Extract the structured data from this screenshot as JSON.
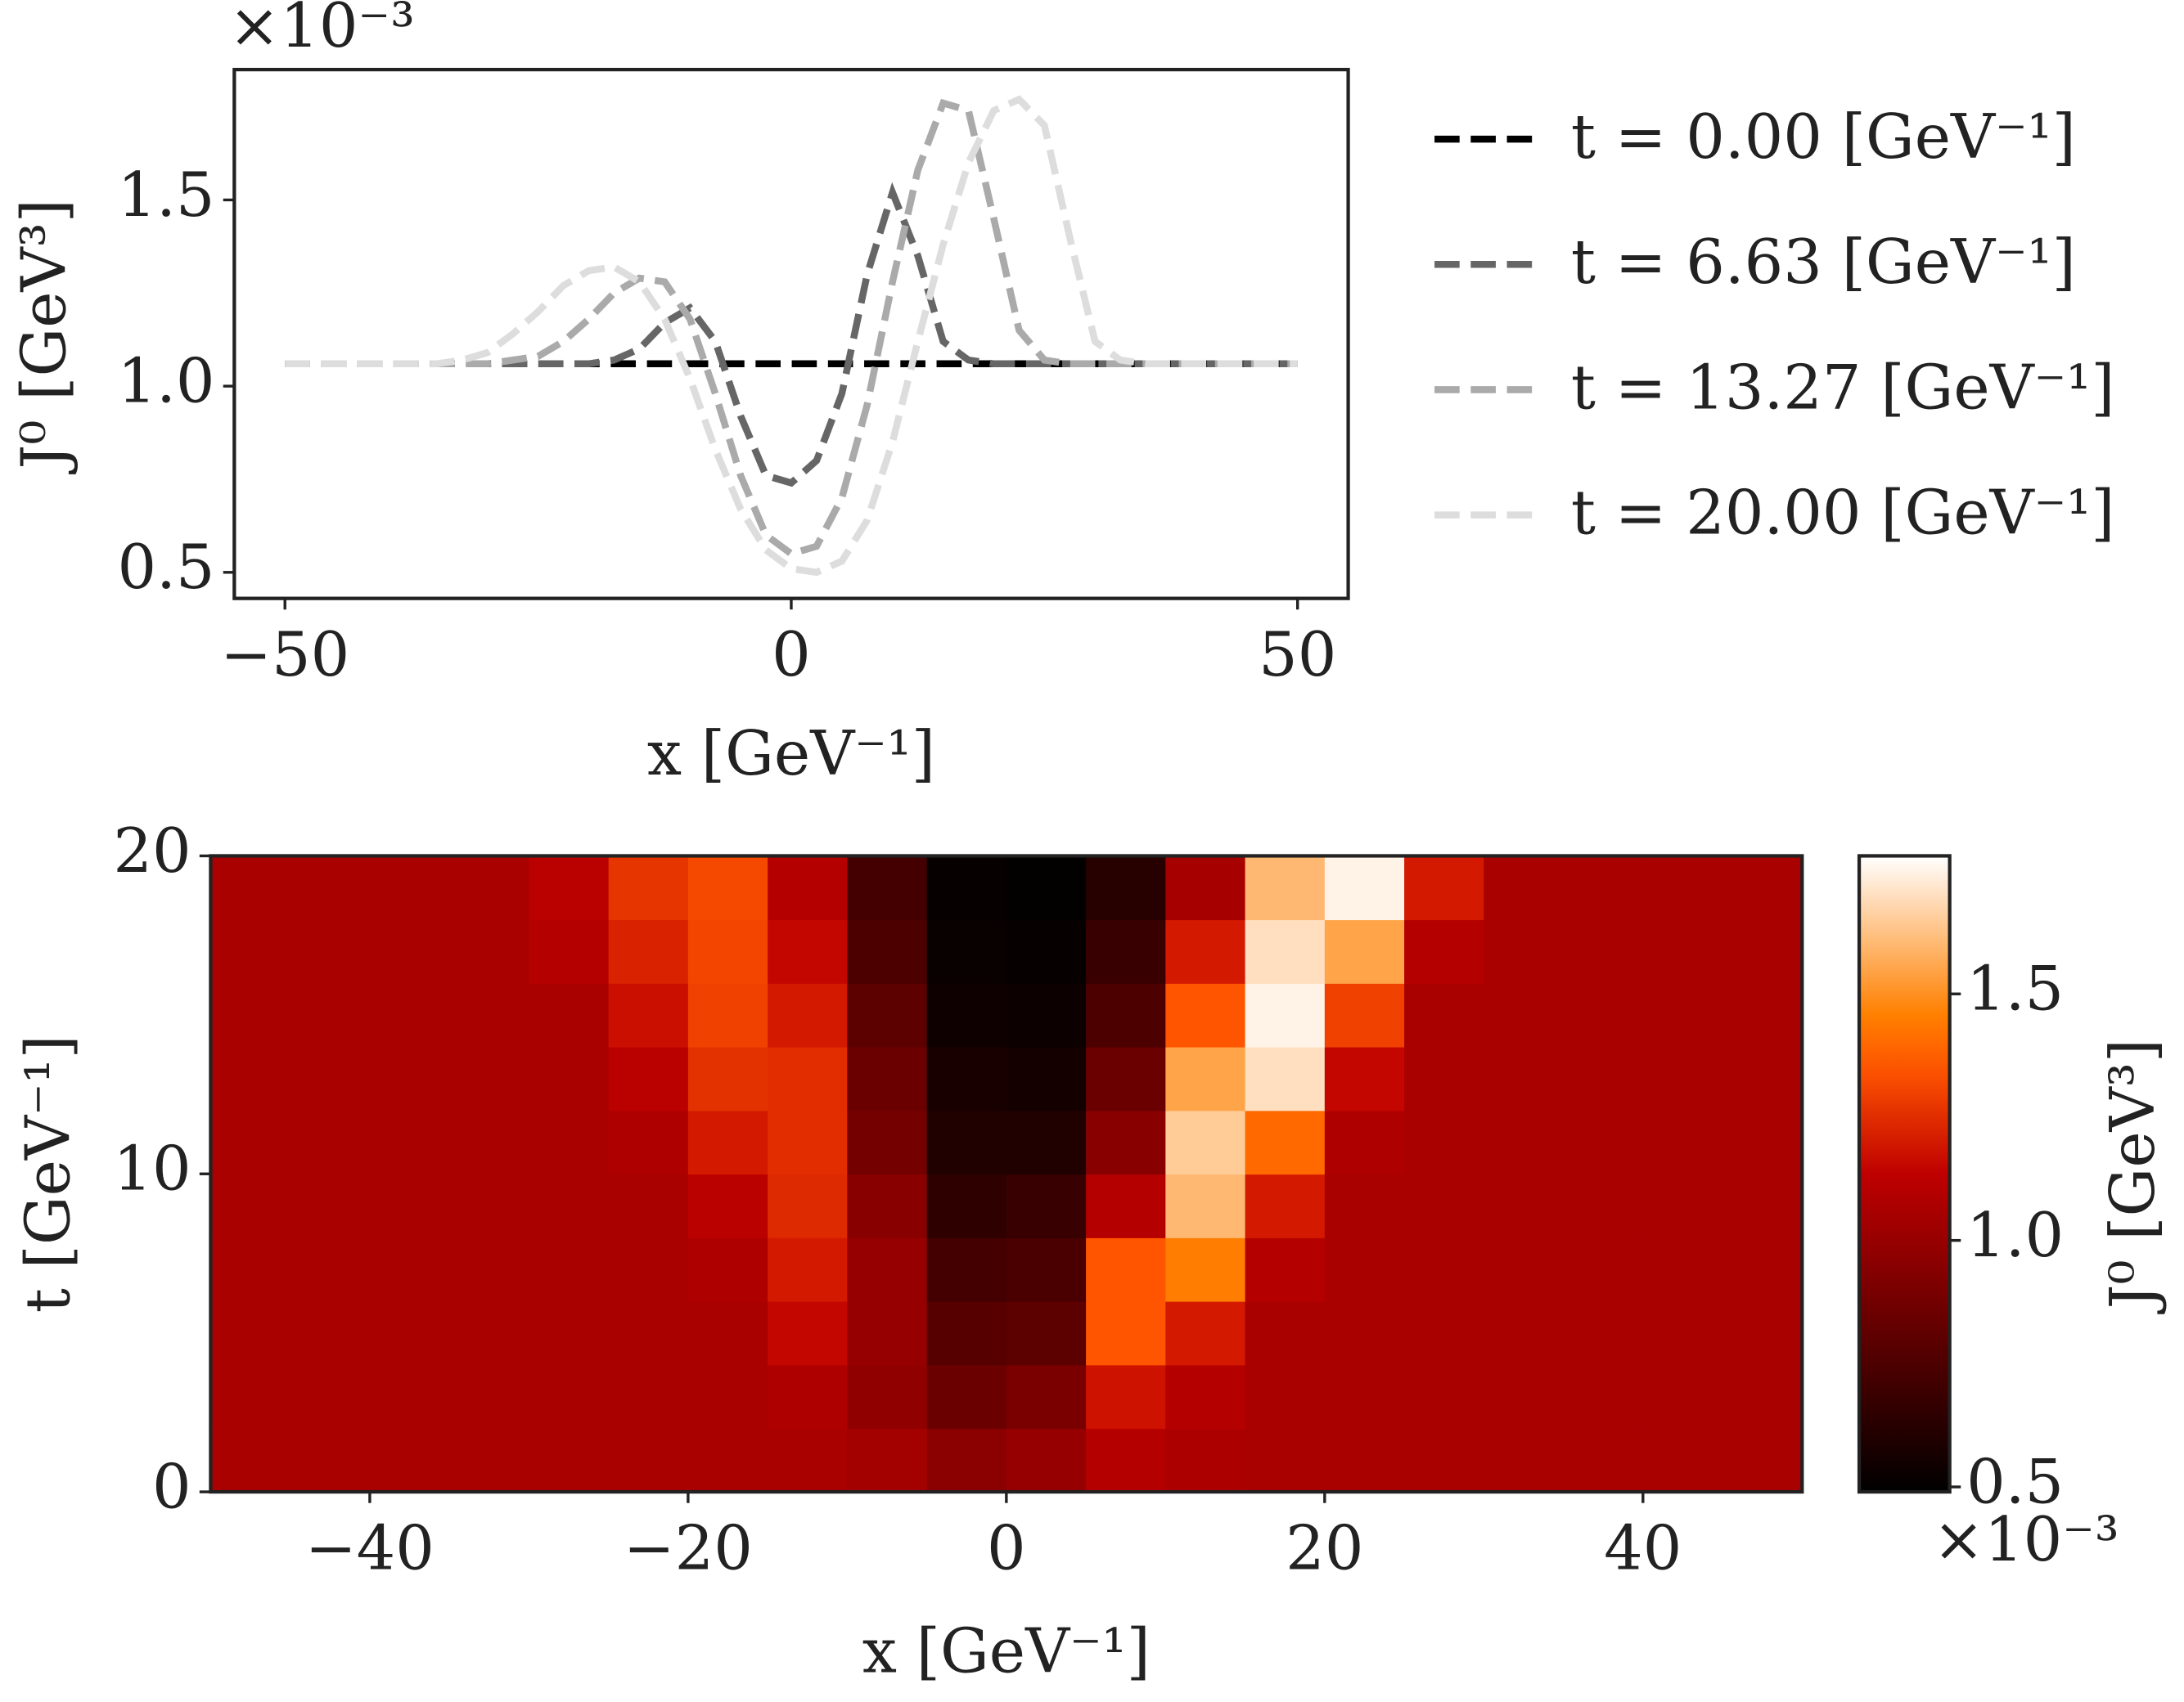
{
  "chart_data": [
    {
      "type": "line",
      "offset_text": "×10⁻³",
      "xlabel": "x [GeV⁻¹]",
      "ylabel": "J⁰ [GeV³]",
      "xlim": [
        -55,
        55
      ],
      "ylim": [
        0.43,
        1.85
      ],
      "xticks": [
        {
          "value": -50,
          "label": "−50"
        },
        0,
        50
      ],
      "yticks": [
        {
          "value": 0.5,
          "label": "0.5"
        },
        {
          "value": 1,
          "label": "1.0"
        },
        {
          "value": 1.5,
          "label": "1.5"
        }
      ],
      "legend": "right",
      "x": [
        -50,
        -47.5,
        -45,
        -42.5,
        -40,
        -37.5,
        -35,
        -32.5,
        -30,
        -27.5,
        -25,
        -22.5,
        -20,
        -17.5,
        -15,
        -12.5,
        -10,
        -7.5,
        -5,
        -2.5,
        0,
        2.5,
        5,
        7.5,
        10,
        12.5,
        15,
        17.5,
        20,
        22.5,
        25,
        27.5,
        30,
        32.5,
        35,
        37.5,
        40,
        42.5,
        45,
        47.5,
        50
      ],
      "series": [
        {
          "name": "t = 0.00 [GeV⁻¹]",
          "color": "#000000",
          "values": [
            1.06,
            1.06,
            1.06,
            1.06,
            1.06,
            1.06,
            1.06,
            1.06,
            1.06,
            1.06,
            1.06,
            1.06,
            1.06,
            1.06,
            1.06,
            1.06,
            1.06,
            1.06,
            1.06,
            1.06,
            1.06,
            1.06,
            1.06,
            1.06,
            1.06,
            1.06,
            1.06,
            1.06,
            1.06,
            1.06,
            1.06,
            1.06,
            1.06,
            1.06,
            1.06,
            1.06,
            1.06,
            1.06,
            1.06,
            1.06,
            1.06
          ]
        },
        {
          "name": "t = 6.63 [GeV⁻¹]",
          "color": "#666666",
          "values": [
            1.06,
            1.06,
            1.06,
            1.06,
            1.06,
            1.06,
            1.06,
            1.06,
            1.06,
            1.06,
            1.06,
            1.06,
            1.06,
            1.07,
            1.1,
            1.17,
            1.21,
            1.12,
            0.92,
            0.76,
            0.74,
            0.8,
            0.98,
            1.3,
            1.52,
            1.35,
            1.12,
            1.07,
            1.06,
            1.06,
            1.06,
            1.06,
            1.06,
            1.06,
            1.06,
            1.06,
            1.06,
            1.06,
            1.06,
            1.06,
            1.06
          ]
        },
        {
          "name": "t = 13.27 [GeV⁻¹]",
          "color": "#aaaaaa",
          "values": [
            1.06,
            1.06,
            1.06,
            1.06,
            1.06,
            1.06,
            1.06,
            1.06,
            1.06,
            1.07,
            1.08,
            1.12,
            1.18,
            1.25,
            1.29,
            1.28,
            1.18,
            0.98,
            0.76,
            0.6,
            0.55,
            0.57,
            0.7,
            0.95,
            1.28,
            1.58,
            1.76,
            1.74,
            1.45,
            1.15,
            1.07,
            1.06,
            1.06,
            1.06,
            1.06,
            1.06,
            1.06,
            1.06,
            1.06,
            1.06,
            1.06
          ]
        },
        {
          "name": "t = 20.00 [GeV⁻¹]",
          "color": "#dddddd",
          "values": [
            1.06,
            1.06,
            1.06,
            1.06,
            1.06,
            1.06,
            1.06,
            1.07,
            1.09,
            1.14,
            1.2,
            1.27,
            1.31,
            1.32,
            1.28,
            1.18,
            1.02,
            0.83,
            0.67,
            0.56,
            0.51,
            0.5,
            0.53,
            0.64,
            0.85,
            1.12,
            1.38,
            1.6,
            1.74,
            1.77,
            1.7,
            1.4,
            1.12,
            1.07,
            1.06,
            1.06,
            1.06,
            1.06,
            1.06,
            1.06,
            1.06
          ]
        }
      ]
    },
    {
      "type": "heatmap",
      "xlabel": "x [GeV⁻¹]",
      "ylabel": "t [GeV⁻¹]",
      "xlim": [
        -50,
        50
      ],
      "ylim": [
        0,
        20
      ],
      "xticks": [
        {
          "value": -40,
          "label": "−40"
        },
        {
          "value": -20,
          "label": "−20"
        },
        0,
        20,
        40
      ],
      "yticks": [
        0,
        10,
        20
      ],
      "colormap": "gist_heat",
      "clim": [
        0.49,
        1.78
      ],
      "cticks": [
        {
          "value": 0.5,
          "label": "0.5"
        },
        {
          "value": 1,
          "label": "1.0"
        },
        {
          "value": 1.5,
          "label": "1.5"
        }
      ],
      "colorbar_label": "J⁰ [GeV³]",
      "colorbar_offset_text": "×10⁻³",
      "x": [
        -47.5,
        -42.5,
        -37.5,
        -32.5,
        -27.5,
        -22.5,
        -17.5,
        -12.5,
        -7.5,
        -2.5,
        2.5,
        7.5,
        12.5,
        17.5,
        22.5,
        27.5,
        32.5,
        37.5,
        42.5,
        47.5
      ],
      "y": [
        1,
        3,
        5,
        7,
        9,
        11,
        13,
        15,
        17,
        19
      ],
      "values": [
        [
          1.06,
          1.06,
          1.06,
          1.06,
          1.06,
          1.06,
          1.06,
          1.06,
          1.04,
          0.96,
          1.0,
          1.1,
          1.07,
          1.06,
          1.06,
          1.06,
          1.06,
          1.06,
          1.06,
          1.06
        ],
        [
          1.06,
          1.06,
          1.06,
          1.06,
          1.06,
          1.06,
          1.06,
          1.08,
          0.98,
          0.85,
          0.9,
          1.18,
          1.1,
          1.06,
          1.06,
          1.06,
          1.06,
          1.06,
          1.06,
          1.06
        ],
        [
          1.06,
          1.06,
          1.06,
          1.06,
          1.06,
          1.06,
          1.06,
          1.15,
          1.0,
          0.78,
          0.8,
          1.35,
          1.2,
          1.06,
          1.06,
          1.06,
          1.06,
          1.06,
          1.06,
          1.06
        ],
        [
          1.06,
          1.06,
          1.06,
          1.06,
          1.06,
          1.06,
          1.08,
          1.2,
          1.0,
          0.72,
          0.74,
          1.35,
          1.45,
          1.1,
          1.06,
          1.06,
          1.06,
          1.06,
          1.06,
          1.06
        ],
        [
          1.06,
          1.06,
          1.06,
          1.06,
          1.06,
          1.06,
          1.12,
          1.24,
          0.95,
          0.65,
          0.68,
          1.1,
          1.6,
          1.2,
          1.06,
          1.06,
          1.06,
          1.06,
          1.06,
          1.06
        ],
        [
          1.06,
          1.06,
          1.06,
          1.06,
          1.06,
          1.08,
          1.2,
          1.25,
          0.88,
          0.6,
          0.6,
          0.95,
          1.65,
          1.4,
          1.08,
          1.06,
          1.06,
          1.06,
          1.06,
          1.06
        ],
        [
          1.06,
          1.06,
          1.06,
          1.06,
          1.06,
          1.12,
          1.26,
          1.25,
          0.85,
          0.57,
          0.56,
          0.85,
          1.55,
          1.7,
          1.15,
          1.06,
          1.06,
          1.06,
          1.06,
          1.06
        ],
        [
          1.06,
          1.06,
          1.06,
          1.06,
          1.06,
          1.17,
          1.3,
          1.2,
          0.8,
          0.54,
          0.53,
          0.75,
          1.35,
          1.75,
          1.3,
          1.06,
          1.06,
          1.06,
          1.06,
          1.06
        ],
        [
          1.06,
          1.06,
          1.06,
          1.06,
          1.1,
          1.22,
          1.31,
          1.15,
          0.75,
          0.52,
          0.51,
          0.68,
          1.2,
          1.7,
          1.55,
          1.1,
          1.06,
          1.06,
          1.06,
          1.06
        ],
        [
          1.06,
          1.06,
          1.06,
          1.06,
          1.12,
          1.27,
          1.32,
          1.1,
          0.72,
          0.51,
          0.5,
          0.62,
          1.05,
          1.6,
          1.75,
          1.2,
          1.06,
          1.06,
          1.06,
          1.06
        ]
      ]
    }
  ]
}
